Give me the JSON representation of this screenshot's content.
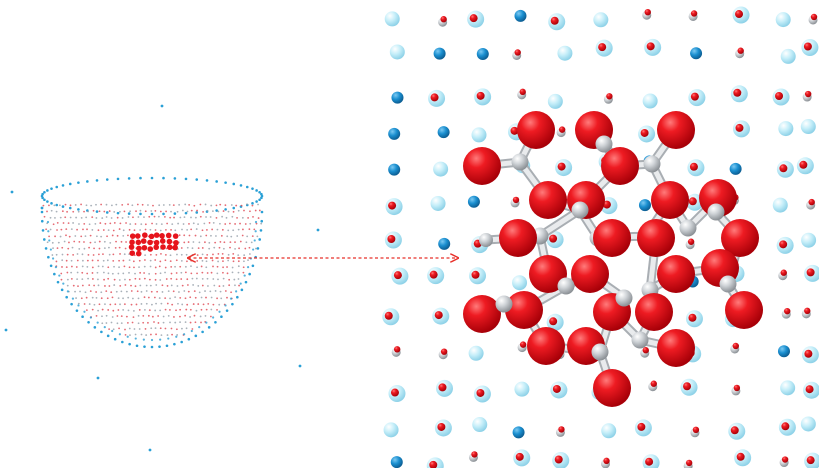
{
  "figure": {
    "left_panel": {
      "label": "",
      "description_visible_text": ""
    },
    "right_panel": {
      "label": "",
      "description_visible_text": ""
    },
    "arrow": {
      "style": "dashed-double-headed",
      "color": "#e8302a"
    }
  },
  "colors": {
    "oxygen_red": "#e0121a",
    "carbon_grey": "#c8ccd0",
    "hydrogen_white": "#f2f4f6",
    "water_lightblue": "#bfe9f5",
    "ion_blue": "#1a8fd0",
    "point_cloud_blue": "#2aa0d6",
    "point_cloud_red": "#e0505a",
    "background": "#ffffff"
  }
}
